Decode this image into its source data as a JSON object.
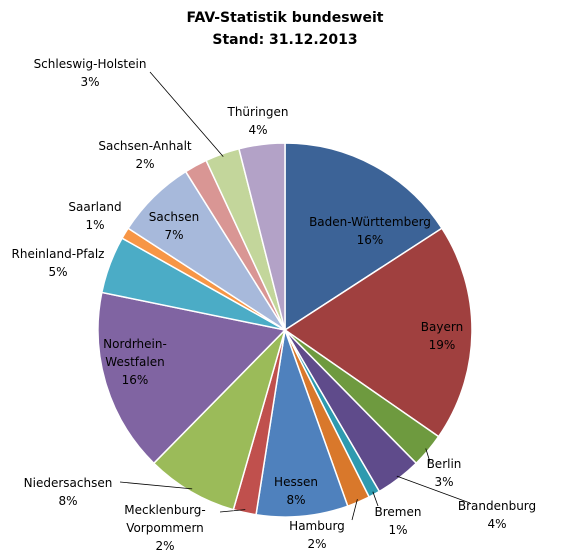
{
  "chart_data": {
    "type": "pie",
    "title": [
      "FAV-Statistik bundesweit",
      "Stand: 31.12.2013"
    ],
    "categories": [
      "Baden-Württemberg",
      "Bayern",
      "Berlin",
      "Brandenburg",
      "Bremen",
      "Hamburg",
      "Hessen",
      "Mecklenburg-Vorpommern",
      "Niedersachsen",
      "Nordrhein-Westfalen",
      "Rheinland-Pfalz",
      "Saarland",
      "Sachsen",
      "Sachsen-Anhalt",
      "Schleswig-Holstein",
      "Thüringen"
    ],
    "values": [
      16,
      19,
      3,
      4,
      1,
      2,
      8,
      2,
      8,
      16,
      5,
      1,
      7,
      2,
      3,
      4
    ],
    "value_labels": [
      "16%",
      "19%",
      "3%",
      "4%",
      "1%",
      "2%",
      "8%",
      "2%",
      "8%",
      "16%",
      "5%",
      "1%",
      "7%",
      "2%",
      "3%",
      "4%"
    ],
    "colors": [
      "#3C6397",
      "#A0403F",
      "#6E9A3F",
      "#5F4B8B",
      "#2E9AAF",
      "#D9782B",
      "#4F81BD",
      "#C0504D",
      "#9BBB59",
      "#8064A2",
      "#4BACC6",
      "#F79646",
      "#A7B9DB",
      "#D99694",
      "#C3D69B",
      "#B3A2C7"
    ]
  }
}
